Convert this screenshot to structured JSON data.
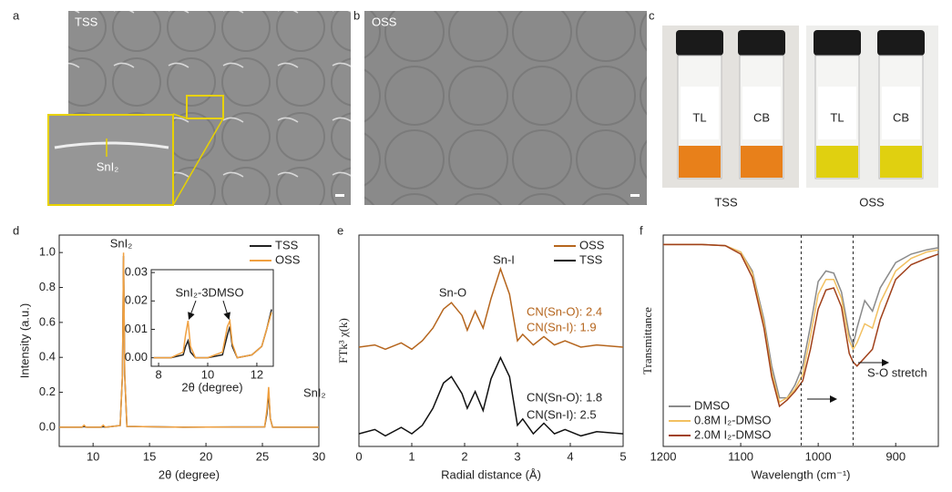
{
  "image_panels": {
    "a": {
      "label": "a",
      "tag": "TSS",
      "inset_label": "SnI₂"
    },
    "b": {
      "label": "b",
      "tag": "OSS"
    },
    "c": {
      "label": "c",
      "vial_labels": [
        "TL",
        "CB",
        "TL",
        "CB"
      ],
      "captions": [
        "TSS",
        "OSS"
      ]
    }
  },
  "chart_data": [
    {
      "type": "line",
      "panel": "d",
      "xlabel": "2θ (degree)",
      "ylabel": "Intensity (a.u.)",
      "xlim": [
        7,
        30
      ],
      "ylim": [
        -0.11,
        1.1
      ],
      "xticks": [
        10,
        15,
        20,
        25,
        30
      ],
      "yticks": [
        {
          "value": 0,
          "label": "0.0"
        },
        {
          "value": 0.2,
          "label": "0.2"
        },
        {
          "value": 0.4,
          "label": "0.4"
        },
        {
          "value": 0.6,
          "label": "0.6"
        },
        {
          "value": 0.8,
          "label": "0.8"
        },
        {
          "value": 1.0,
          "label": "1.0"
        }
      ],
      "legend": "upper right",
      "x": [
        7,
        9,
        9.2,
        9.4,
        10.7,
        10.9,
        11.1,
        12.4,
        12.6,
        12.7,
        12.8,
        13.0,
        18,
        25.2,
        25.4,
        25.55,
        25.7,
        25.9,
        30
      ],
      "series": [
        {
          "name": "TSS",
          "color": "#222222",
          "values": [
            0,
            0,
            0.005,
            0,
            0,
            0.003,
            0,
            0.01,
            0.3,
            0.98,
            0.3,
            0.005,
            0,
            0.002,
            0.08,
            0.2,
            0.05,
            0,
            0
          ]
        },
        {
          "name": "OSS",
          "color": "#f0a040",
          "values": [
            0,
            0,
            0.012,
            0,
            0,
            0.012,
            0,
            0.01,
            0.3,
            1.0,
            0.3,
            0.005,
            0,
            0.002,
            0.1,
            0.23,
            0.05,
            0,
            0
          ]
        }
      ],
      "annotations": [
        "SnI₂",
        "SnI₂"
      ],
      "inset": {
        "xlabel": "2θ (degree)",
        "xlim": [
          7.7,
          12.67
        ],
        "ylim": [
          -0.003,
          0.031
        ],
        "xticks": [
          8,
          10,
          12
        ],
        "yticks": [
          {
            "value": 0,
            "label": "0.00"
          },
          {
            "value": 0.01,
            "label": "0.01"
          },
          {
            "value": 0.02,
            "label": "0.02"
          },
          {
            "value": 0.03,
            "label": "0.03"
          }
        ],
        "x": [
          7.8,
          8.5,
          9.0,
          9.1,
          9.2,
          9.3,
          9.5,
          10,
          10.6,
          10.8,
          10.9,
          11.0,
          11.2,
          11.8,
          12.2,
          12.4,
          12.6
        ],
        "series": [
          {
            "color": "#222222",
            "values": [
              0,
              0,
              0.001,
              0.004,
              0.006,
              0.002,
              0,
              0,
              0.001,
              0.008,
              0.011,
              0.004,
              0,
              0.001,
              0.004,
              0.01,
              0.017
            ]
          },
          {
            "color": "#f0a040",
            "values": [
              0,
              0,
              0.002,
              0.008,
              0.013,
              0.004,
              0,
              0,
              0.002,
              0.011,
              0.013,
              0.005,
              0,
              0.001,
              0.004,
              0.01,
              0.016
            ]
          }
        ],
        "annotation": "SnI₂-3DMSO"
      }
    },
    {
      "type": "line",
      "panel": "e",
      "xlabel": "Radial distance (Å)",
      "ylabel": "FTk³ χ(k)",
      "xlim": [
        0,
        5
      ],
      "ylim": [
        0,
        10
      ],
      "xticks": [
        0,
        1,
        2,
        3,
        4,
        5
      ],
      "legend": "upper right",
      "x": [
        0,
        0.3,
        0.5,
        0.8,
        1.0,
        1.2,
        1.4,
        1.6,
        1.75,
        1.95,
        2.05,
        2.2,
        2.35,
        2.5,
        2.68,
        2.85,
        3.0,
        3.1,
        3.3,
        3.5,
        3.7,
        3.9,
        4.2,
        4.5,
        5
      ],
      "series": [
        {
          "name": "OSS",
          "color": "#b5651d",
          "values": [
            4.7,
            4.8,
            4.6,
            4.9,
            4.6,
            5.0,
            5.6,
            6.5,
            6.8,
            6.2,
            5.5,
            6.4,
            5.6,
            7.0,
            8.4,
            7.2,
            5.0,
            5.3,
            4.8,
            5.2,
            4.8,
            5.0,
            4.7,
            4.8,
            4.7
          ]
        },
        {
          "name": "TSS",
          "color": "#111111",
          "values": [
            0.6,
            0.8,
            0.5,
            0.9,
            0.6,
            1.0,
            1.8,
            3.0,
            3.3,
            2.5,
            1.8,
            2.6,
            1.7,
            3.2,
            4.2,
            3.3,
            1.0,
            1.3,
            0.6,
            1.1,
            0.6,
            0.8,
            0.5,
            0.7,
            0.6
          ]
        }
      ],
      "annotations": [
        "Sn-O",
        "Sn-I",
        "CN(Sn-O): 2.4",
        "CN(Sn-I): 1.9",
        "CN(Sn-O): 1.8",
        "CN(Sn-I): 2.5"
      ]
    },
    {
      "type": "line",
      "panel": "f",
      "xlabel": "Wavelength (cm⁻¹)",
      "ylabel": "Transmittance",
      "xlim": [
        1200,
        845
      ],
      "ylim": [
        0,
        10
      ],
      "xticks": [
        1200,
        1100,
        1000,
        900
      ],
      "legend": "lower left",
      "reference_lines": [
        1022,
        955
      ],
      "x": [
        1200,
        1150,
        1120,
        1100,
        1085,
        1070,
        1060,
        1050,
        1040,
        1030,
        1020,
        1010,
        1000,
        990,
        980,
        970,
        960,
        955,
        950,
        940,
        930,
        920,
        900,
        880,
        860,
        845
      ],
      "series": [
        {
          "name": "DMSO",
          "color": "#8a8a8a",
          "values": [
            9.55,
            9.55,
            9.5,
            9.2,
            8.3,
            6,
            3.8,
            2.3,
            2.3,
            2.9,
            3.8,
            5.7,
            7.8,
            8.3,
            8.2,
            7.3,
            5.3,
            4.8,
            5.6,
            6.9,
            6.4,
            7.5,
            8.7,
            9.1,
            9.3,
            9.4
          ]
        },
        {
          "name": "0.8M I₂-DMSO",
          "color": "#f2c060",
          "values": [
            9.55,
            9.55,
            9.5,
            9.2,
            8.2,
            5.8,
            3.5,
            2.1,
            2.3,
            2.7,
            3.4,
            5.2,
            7.2,
            7.9,
            7.9,
            7.0,
            5.0,
            4.6,
            4.9,
            5.8,
            5.6,
            6.8,
            8.3,
            8.9,
            9.2,
            9.3
          ]
        },
        {
          "name": "2.0M I₂-DMSO",
          "color": "#a0401a",
          "values": [
            9.55,
            9.55,
            9.5,
            9.1,
            8.0,
            5.6,
            3.3,
            1.9,
            2.2,
            2.6,
            3.1,
            4.6,
            6.5,
            7.4,
            7.5,
            6.6,
            4.4,
            4.0,
            3.8,
            4.2,
            4.6,
            6.0,
            7.9,
            8.6,
            8.9,
            9.1
          ]
        }
      ],
      "annotations": [
        "S-O stretch"
      ]
    }
  ]
}
